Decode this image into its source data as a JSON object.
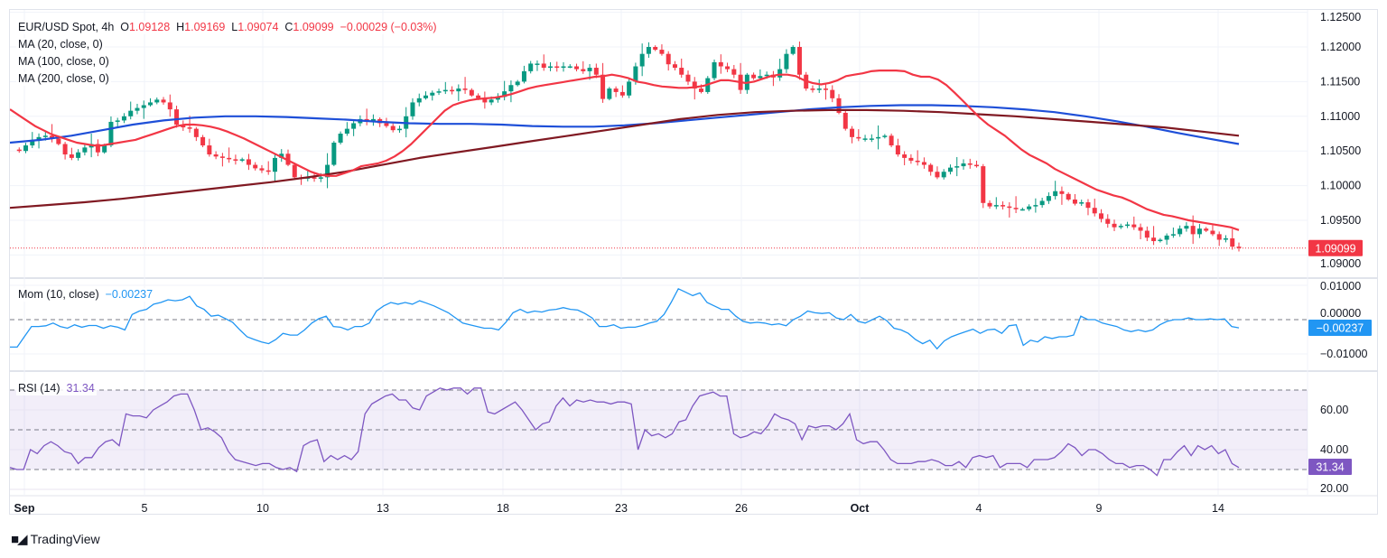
{
  "header": {
    "symbol": "EUR/USD Spot, 4h",
    "open_label": "O",
    "open": "1.09128",
    "high_label": "H",
    "high": "1.09169",
    "low_label": "L",
    "low": "1.09074",
    "close_label": "C",
    "close": "1.09099",
    "change": "−0.00029 (−0.03%)"
  },
  "indicators": {
    "ma20": "MA (20, close, 0)",
    "ma100": "MA (100, close, 0)",
    "ma200": "MA (200, close, 0)",
    "mom_label": "Mom (10, close)",
    "mom_value": "−0.00237",
    "rsi_label": "RSI (14)",
    "rsi_value": "31.34"
  },
  "price_axis": {
    "ticks": [
      "1.12500",
      "1.12000",
      "1.11500",
      "1.11000",
      "1.10500",
      "1.10000",
      "1.09500",
      "1.09000"
    ],
    "last_price": "1.09099"
  },
  "mom_axis": {
    "ticks": [
      "0.01000",
      "0.00000",
      "−0.01000"
    ],
    "last": "−0.00237"
  },
  "rsi_axis": {
    "ticks": [
      "60.00",
      "40.00",
      "20.00"
    ],
    "last": "31.34"
  },
  "time_axis": {
    "ticks": [
      "Sep",
      "5",
      "10",
      "13",
      "18",
      "23",
      "26",
      "Oct",
      "4",
      "9",
      "14"
    ]
  },
  "branding": {
    "logo_text": "TradingView"
  },
  "colors": {
    "up": "#089981",
    "down": "#f23645",
    "ma20": "#f23645",
    "ma100": "#1e4fd8",
    "ma200": "#801922",
    "mom": "#2196f3",
    "rsi": "#7e57c2",
    "rsi_band": "#7e57c2"
  },
  "chart_data": {
    "type": "candlestick",
    "title": "EUR/USD Spot, 4h",
    "ylim": [
      1.0895,
      1.1255
    ],
    "x_ticks": [
      "Sep",
      "5",
      "10",
      "13",
      "18",
      "23",
      "26",
      "Oct",
      "4",
      "9",
      "14"
    ],
    "price_path": [
      1.1052,
      1.105,
      1.1058,
      1.1066,
      1.107,
      1.1072,
      1.1068,
      1.106,
      1.1045,
      1.104,
      1.1048,
      1.1055,
      1.106,
      1.1048,
      1.1058,
      1.1092,
      1.1094,
      1.11,
      1.1108,
      1.1112,
      1.1116,
      1.112,
      1.1124,
      1.112,
      1.111,
      1.1088,
      1.1084,
      1.1082,
      1.107,
      1.1058,
      1.1045,
      1.1042,
      1.104,
      1.1038,
      1.1036,
      1.1038,
      1.103,
      1.1025,
      1.1022,
      1.102,
      1.104,
      1.1046,
      1.103,
      1.1012,
      1.101,
      1.1012,
      1.101,
      1.1012,
      1.103,
      1.1062,
      1.1075,
      1.1082,
      1.109,
      1.1096,
      1.1092,
      1.1096,
      1.109,
      1.1086,
      1.108,
      1.1082,
      1.11,
      1.112,
      1.1126,
      1.113,
      1.1134,
      1.1136,
      1.1138,
      1.1136,
      1.114,
      1.1138,
      1.113,
      1.1126,
      1.112,
      1.1124,
      1.1128,
      1.1136,
      1.1145,
      1.115,
      1.1165,
      1.1176,
      1.1176,
      1.117,
      1.1172,
      1.117,
      1.1172,
      1.1172,
      1.1168,
      1.1165,
      1.117,
      1.116,
      1.1125,
      1.114,
      1.1135,
      1.113,
      1.115,
      1.1172,
      1.119,
      1.12,
      1.1196,
      1.119,
      1.1175,
      1.117,
      1.116,
      1.115,
      1.114,
      1.1135,
      1.1155,
      1.1178,
      1.1172,
      1.1168,
      1.116,
      1.1138,
      1.116,
      1.1155,
      1.1158,
      1.116,
      1.1156,
      1.1168,
      1.119,
      1.12,
      1.116,
      1.114,
      1.1138,
      1.114,
      1.1138,
      1.1126,
      1.1105,
      1.1082,
      1.107,
      1.1068,
      1.1068,
      1.1068,
      1.107,
      1.1072,
      1.1058,
      1.1045,
      1.104,
      1.1036,
      1.1034,
      1.103,
      1.102,
      1.1012,
      1.102,
      1.1026,
      1.1028,
      1.1032,
      1.103,
      1.1028,
      1.0975,
      1.097,
      1.0972,
      1.097,
      1.0968,
      1.0966,
      1.0966,
      1.097,
      1.0972,
      1.0978,
      1.0985,
      1.0992,
      1.0988,
      1.098,
      1.0974,
      1.0976,
      1.0968,
      1.096,
      1.0952,
      1.0945,
      1.094,
      1.0942,
      1.0944,
      1.094,
      1.0935,
      1.0925,
      1.092,
      1.0922,
      1.0928,
      1.093,
      1.0938,
      1.0942,
      1.093,
      1.0938,
      1.0935,
      1.093,
      1.0922,
      1.0924,
      1.0912,
      1.091
    ],
    "ma20": [
      1.111,
      1.1102,
      1.1094,
      1.1086,
      1.108,
      1.1074,
      1.107,
      1.1066,
      1.1062,
      1.106,
      1.1058,
      1.1058,
      1.106,
      1.1062,
      1.1064,
      1.1066,
      1.107,
      1.1074,
      1.1078,
      1.1082,
      1.1086,
      1.1088,
      1.1088,
      1.1087,
      1.1085,
      1.1082,
      1.1078,
      1.1073,
      1.1068,
      1.1062,
      1.1056,
      1.105,
      1.1044,
      1.1038,
      1.1032,
      1.1026,
      1.102,
      1.1016,
      1.1014,
      1.1014,
      1.1018,
      1.1022,
      1.1028,
      1.103,
      1.1032,
      1.1036,
      1.1042,
      1.105,
      1.106,
      1.1072,
      1.1084,
      1.1096,
      1.1108,
      1.1116,
      1.112,
      1.1123,
      1.1125,
      1.1126,
      1.1127,
      1.1129,
      1.1132,
      1.1136,
      1.114,
      1.1143,
      1.1145,
      1.1147,
      1.1149,
      1.1151,
      1.1153,
      1.1155,
      1.1157,
      1.1158,
      1.116,
      1.1158,
      1.1155,
      1.115,
      1.1148,
      1.1145,
      1.1143,
      1.1142,
      1.1141,
      1.1141,
      1.1142,
      1.1144,
      1.1148,
      1.1152,
      1.1152,
      1.115,
      1.1148,
      1.115,
      1.1154,
      1.1158,
      1.116,
      1.116,
      1.1158,
      1.1152,
      1.1148,
      1.1146,
      1.1148,
      1.1152,
      1.1158,
      1.116,
      1.1162,
      1.1165,
      1.1166,
      1.1166,
      1.1166,
      1.1165,
      1.116,
      1.1157,
      1.1157,
      1.1153,
      1.1145,
      1.1134,
      1.1122,
      1.111,
      1.1098,
      1.1088,
      1.108,
      1.1072,
      1.1062,
      1.1052,
      1.1044,
      1.1038,
      1.1032,
      1.1024,
      1.1018,
      1.1012,
      1.1006,
      1.1,
      1.0994,
      1.099,
      1.0986,
      1.0983,
      1.0978,
      1.0972,
      1.0966,
      1.0962,
      1.0958,
      1.0956,
      1.0953,
      1.095,
      1.0948,
      1.0946,
      1.0944,
      1.0942,
      1.094,
      1.0936
    ],
    "ma100": [
      1.1062,
      1.1066,
      1.1072,
      1.108,
      1.1088,
      1.1094,
      1.1098,
      1.11,
      1.11,
      1.1099,
      1.1097,
      1.1095,
      1.1092,
      1.109,
      1.1089,
      1.1089,
      1.1088,
      1.1086,
      1.1085,
      1.1085,
      1.1087,
      1.109,
      1.1094,
      1.1098,
      1.1102,
      1.1106,
      1.111,
      1.1113,
      1.1115,
      1.1116,
      1.1116,
      1.1115,
      1.1113,
      1.111,
      1.1106,
      1.11,
      1.1093,
      1.1085,
      1.1076,
      1.1068,
      1.106
    ],
    "ma200": [
      1.0968,
      1.0972,
      1.0976,
      1.0981,
      1.0987,
      1.0993,
      1.0999,
      1.1005,
      1.1012,
      1.102,
      1.103,
      1.104,
      1.1048,
      1.1056,
      1.1064,
      1.1072,
      1.108,
      1.1088,
      1.1096,
      1.1102,
      1.1106,
      1.1108,
      1.1109,
      1.1109,
      1.1108,
      1.1106,
      1.1103,
      1.11,
      1.1096,
      1.1092,
      1.1088,
      1.1084,
      1.1078,
      1.1072
    ],
    "momentum": {
      "name": "Mom (10, close)",
      "ylim": [
        -0.0135,
        0.0115
      ],
      "values": [
        -0.008,
        -0.008,
        -0.005,
        -0.002,
        -0.002,
        -0.0018,
        -0.001,
        -0.002,
        -0.0025,
        -0.0015,
        -0.0022,
        -0.0017,
        -0.0017,
        -0.0025,
        -0.0018,
        -0.0022,
        -0.003,
        0.0015,
        0.0025,
        0.003,
        0.0045,
        0.005,
        0.0058,
        0.0055,
        0.0058,
        0.0068,
        0.004,
        0.003,
        0.001,
        0.0013,
        0.0003,
        -0.0008,
        -0.003,
        -0.005,
        -0.0058,
        -0.0065,
        -0.007,
        -0.0058,
        -0.004,
        -0.0045,
        -0.0045,
        -0.003,
        -0.001,
        0.0003,
        0.001,
        -0.002,
        -0.0022,
        -0.003,
        -0.002,
        -0.002,
        -0.001,
        0.0025,
        0.004,
        0.005,
        0.0045,
        0.005,
        0.0045,
        0.0055,
        0.0048,
        0.004,
        0.003,
        0.002,
        0.0005,
        -0.001,
        -0.0015,
        -0.002,
        -0.0025,
        -0.0025,
        -0.003,
        -0.0008,
        0.002,
        0.003,
        0.002,
        0.0025,
        0.0022,
        0.0028,
        0.003,
        0.0035,
        0.003,
        0.0028,
        0.0018,
        0.0005,
        -0.002,
        -0.002,
        -0.0015,
        -0.0025,
        -0.0022,
        -0.0022,
        -0.0017,
        -0.001,
        -0.0005,
        0.0015,
        0.005,
        0.009,
        0.008,
        0.007,
        0.0078,
        0.005,
        0.004,
        0.003,
        0.003,
        0.001,
        -0.0005,
        -0.001,
        -0.0008,
        -0.001,
        -0.0015,
        -0.0012,
        -0.0018,
        0.0,
        0.001,
        0.0025,
        0.002,
        0.0018,
        0.002,
        0.0005,
        0.0,
        0.0015,
        -0.0005,
        -0.001,
        0.0,
        0.001,
        -0.0003,
        -0.0025,
        -0.003,
        -0.004,
        -0.0058,
        -0.007,
        -0.006,
        -0.0085,
        -0.0062,
        -0.005,
        -0.0042,
        -0.0035,
        -0.0028,
        -0.004,
        -0.003,
        -0.0028,
        -0.004,
        -0.0018,
        -0.0015,
        -0.0075,
        -0.006,
        -0.0065,
        -0.005,
        -0.0055,
        -0.005,
        -0.005,
        -0.0045,
        0.001,
        0.0,
        0.0,
        -0.001,
        -0.0015,
        -0.002,
        -0.003,
        -0.0035,
        -0.003,
        -0.0035,
        -0.003,
        -0.0015,
        -0.0005,
        0.0,
        0.0,
        0.0005,
        0.0,
        0.0,
        0.0002,
        0.0,
        0.0002,
        -0.002,
        -0.0024
      ]
    },
    "rsi": {
      "name": "RSI (14)",
      "ylim": [
        18,
        76
      ],
      "overbought": 70,
      "middle": 50,
      "oversold": 30,
      "values": [
        31,
        30,
        30,
        40,
        38,
        42,
        44,
        42,
        39,
        38,
        33,
        36,
        36,
        41,
        44,
        45,
        42,
        58,
        57,
        57,
        56,
        60,
        62,
        64,
        67,
        68,
        68,
        60,
        50,
        51,
        49,
        46,
        39,
        35,
        34,
        33,
        32,
        33,
        33,
        31,
        30,
        31,
        29,
        42,
        44,
        45,
        34,
        37,
        35,
        37,
        35,
        39,
        58,
        63,
        65,
        67,
        68,
        65,
        65,
        61,
        60,
        67,
        69,
        71,
        70,
        71,
        71,
        68,
        71,
        71,
        59,
        58,
        60,
        62,
        64,
        60,
        55,
        50,
        53,
        54,
        62,
        66,
        62,
        65,
        64,
        65,
        64,
        64,
        63,
        64,
        64,
        63,
        40,
        50,
        47,
        48,
        46,
        48,
        54,
        55,
        62,
        67,
        68,
        69,
        67,
        67,
        48,
        46,
        47,
        49,
        48,
        52,
        58,
        56,
        55,
        53,
        45,
        52,
        51,
        52,
        52,
        50,
        53,
        58,
        45,
        43,
        44,
        44,
        40,
        35,
        33,
        33,
        33,
        34,
        34,
        35,
        34,
        32,
        32,
        34,
        31,
        36,
        37,
        36,
        37,
        31,
        33,
        33,
        33,
        31,
        35,
        35,
        35,
        36,
        39,
        43,
        41,
        37,
        40,
        40,
        38,
        35,
        33,
        33,
        31,
        32,
        32,
        30,
        27,
        35,
        35,
        39,
        42,
        37,
        42,
        40,
        42,
        38,
        40,
        33,
        31
      ]
    }
  }
}
